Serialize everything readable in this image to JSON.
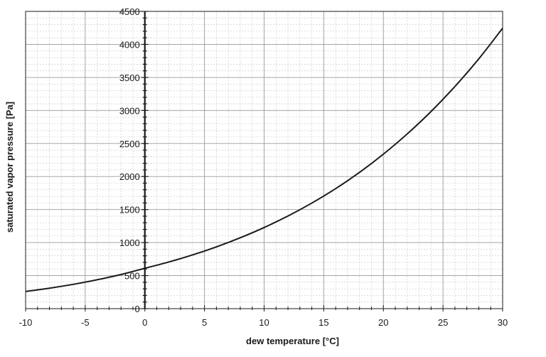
{
  "chart_data": {
    "type": "line",
    "title": "",
    "xlabel": "dew temperature [°C]",
    "ylabel": "saturated vapor pressure [Pa]",
    "xlim": [
      -10,
      30
    ],
    "ylim": [
      0,
      4500
    ],
    "x_ticks": [
      "-10",
      "-5",
      "0",
      "5",
      "10",
      "15",
      "20",
      "25",
      "30"
    ],
    "y_ticks": [
      "0",
      "500",
      "1000",
      "1500",
      "2000",
      "2500",
      "3000",
      "3500",
      "4000",
      "4500"
    ],
    "grid": true,
    "legend": "none",
    "series": [
      {
        "color": "#1a1a1a",
        "x": [
          -10,
          -8,
          -6,
          -4,
          -2,
          0,
          2,
          4,
          6,
          8,
          10,
          12,
          14,
          16,
          18,
          20,
          22,
          24,
          26,
          28,
          30
        ],
        "y": [
          260,
          310,
          368,
          437,
          517,
          611,
          706,
          813,
          935,
          1073,
          1228,
          1402,
          1598,
          1817,
          2063,
          2339,
          2645,
          2985,
          3363,
          3781,
          4246
        ]
      }
    ]
  }
}
